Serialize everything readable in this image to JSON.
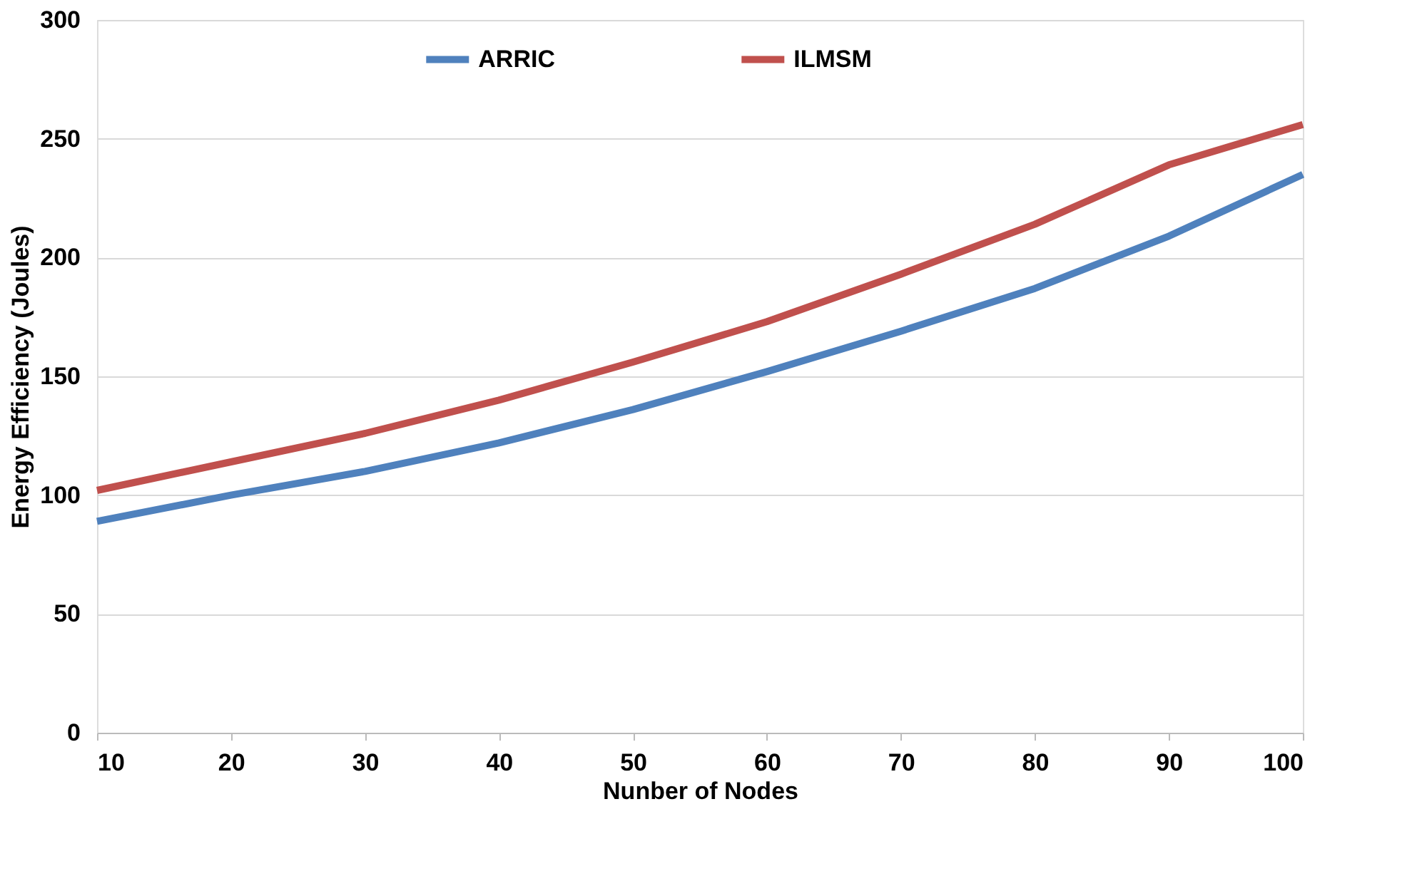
{
  "chart_data": {
    "type": "line",
    "xlabel": "Nunber of Nodes",
    "ylabel": "Energy Efficiency (Joules)",
    "x": [
      10,
      20,
      30,
      40,
      50,
      60,
      70,
      80,
      90,
      100
    ],
    "series": [
      {
        "name": "ARRIC",
        "color": "#4f81bd",
        "values": [
          89,
          100,
          110,
          122,
          136,
          152,
          169,
          187,
          209,
          235
        ]
      },
      {
        "name": "ILMSM",
        "color": "#c0504d",
        "values": [
          102,
          114,
          126,
          140,
          156,
          173,
          193,
          214,
          239,
          256
        ]
      }
    ],
    "xlim": [
      10,
      100
    ],
    "xticks": [
      10,
      20,
      30,
      40,
      50,
      60,
      70,
      80,
      90,
      100
    ],
    "ylim": [
      0,
      300
    ],
    "yticks": [
      0,
      50,
      100,
      150,
      200,
      250,
      300
    ],
    "grid": "y",
    "legend": "top",
    "marker": "none",
    "line_style": "solid"
  }
}
